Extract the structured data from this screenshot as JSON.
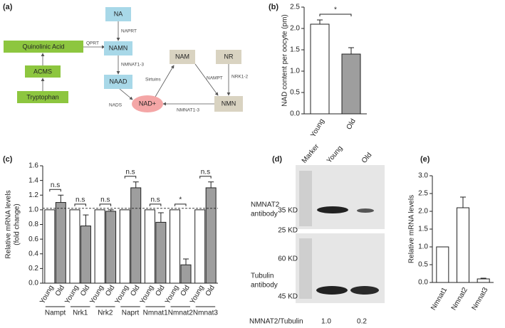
{
  "panels": [
    "(a)",
    "(b)",
    "(c)",
    "(d)",
    "(e)"
  ],
  "pathway": {
    "nodes": [
      "NA",
      "NAMN",
      "NAAD",
      "NAD+",
      "Quinolinic Acid",
      "ACMS",
      "Tryptophan",
      "NAM",
      "NR",
      "NMN"
    ],
    "enzymes": [
      "NAPRT",
      "QPRT",
      "NMNAT1-3",
      "NADS",
      "Sirtuins",
      "NAMPT",
      "NRK1-2",
      "NMNAT1-3"
    ]
  },
  "chart_data": [
    {
      "type": "bar",
      "y_label": [
        "NAD content per oocyte (pm)"
      ],
      "categories": [
        "Young",
        "Old"
      ],
      "values": [
        2.1,
        1.4
      ],
      "errors": [
        0.1,
        0.15
      ],
      "colors": [
        "#ffffff",
        "#9e9e9e"
      ],
      "ylim": [
        0,
        2.5
      ],
      "yticks": [
        {
          "value": 0,
          "label": "0.0"
        },
        {
          "value": 0.5,
          "label": "0.5"
        },
        {
          "value": 1,
          "label": "1.0"
        },
        {
          "value": 1.5,
          "label": "1.5"
        },
        {
          "value": 2,
          "label": "2.0"
        },
        {
          "value": 2.5,
          "label": "2.5"
        }
      ],
      "annotation": "*"
    },
    {
      "type": "grouped_bar",
      "y_label": [
        "Relative mRNA levels",
        "(fold change)"
      ],
      "categories": [
        "Nampt",
        "Nrk1",
        "Nrk2",
        "Naprt",
        "Nmnat1",
        "Nmnat2",
        "Nmnat3"
      ],
      "series": [
        {
          "name": "Young",
          "color": "#ffffff",
          "values": [
            1,
            1,
            1,
            1,
            1,
            1,
            1
          ]
        },
        {
          "name": "Old",
          "color": "#9e9e9e",
          "values": [
            1.1,
            0.78,
            0.98,
            1.3,
            0.83,
            0.25,
            1.3
          ],
          "errors": [
            0.1,
            0.15,
            0.02,
            0.08,
            0.13,
            0.08,
            0.08
          ]
        }
      ],
      "ylim": [
        0,
        1.6
      ],
      "yticks": [
        {
          "value": 0,
          "label": "0.0"
        },
        {
          "value": 0.2,
          "label": "0.2"
        },
        {
          "value": 0.4,
          "label": "0.4"
        },
        {
          "value": 0.6,
          "label": "0.6"
        },
        {
          "value": 0.8,
          "label": "0.8"
        },
        {
          "value": 1,
          "label": "1.0"
        },
        {
          "value": 1.2,
          "label": "1.2"
        },
        {
          "value": 1.4,
          "label": "1.4"
        },
        {
          "value": 1.6,
          "label": "1.6"
        }
      ],
      "reference_line": 1.02,
      "annotations": [
        "n.s",
        "n.s",
        "n.s",
        "n.s",
        "n.s",
        "*",
        "n.s"
      ]
    },
    {
      "type": "bar",
      "y_label": [
        "Relative mRNA levels"
      ],
      "categories": [
        "Nmnat1",
        "Nmnat2",
        "Nmnat3"
      ],
      "values": [
        1.0,
        2.1,
        0.1
      ],
      "errors": [
        null,
        0.3,
        0.02
      ],
      "color": "#ffffff",
      "ylim": [
        0,
        3
      ],
      "yticks": [
        {
          "value": 0,
          "label": "0.0"
        },
        {
          "value": 0.5,
          "label": "0.5"
        },
        {
          "value": 1,
          "label": "1.0"
        },
        {
          "value": 1.5,
          "label": "1.5"
        },
        {
          "value": 2,
          "label": "2.0"
        },
        {
          "value": 2.5,
          "label": "2.5"
        },
        {
          "value": 3,
          "label": "3.0"
        }
      ]
    }
  ],
  "blot": {
    "lanes": [
      "Marker",
      "Young",
      "Old"
    ],
    "antibodies": [
      [
        "NMNAT2",
        "antibody"
      ],
      [
        "Tubulin",
        "antibody"
      ]
    ],
    "markers": [
      "35 KD",
      "25 KD",
      "60 KD",
      "45 KD"
    ],
    "ratio_label": "NMNAT2/Tubulin",
    "ratios": [
      "1.0",
      "0.2"
    ]
  }
}
